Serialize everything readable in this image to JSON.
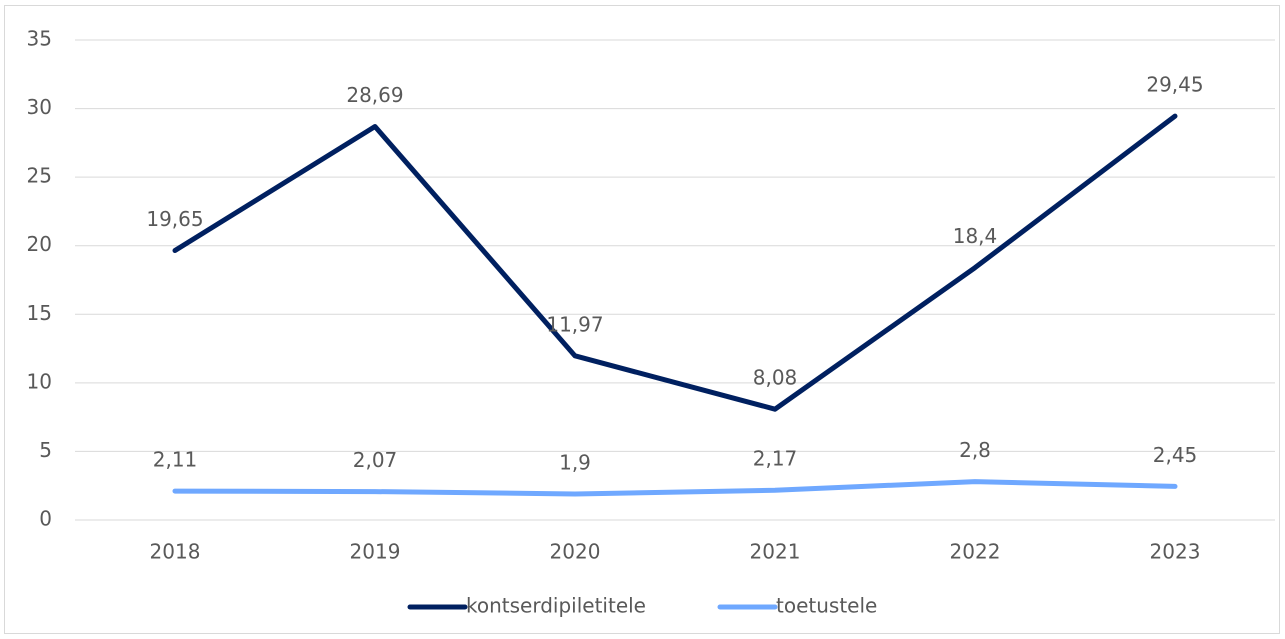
{
  "chart_data": {
    "type": "line",
    "categories": [
      "2018",
      "2019",
      "2020",
      "2021",
      "2022",
      "2023"
    ],
    "series": [
      {
        "name": "kontserdipiletitele",
        "color": "#002060",
        "values": [
          19.65,
          28.69,
          11.97,
          8.08,
          18.4,
          29.45
        ],
        "value_labels": [
          "19,65",
          "28,69",
          "11,97",
          "8,08",
          "18,4",
          "29,45"
        ]
      },
      {
        "name": "toetustele",
        "color": "#6fa8ff",
        "values": [
          2.11,
          2.07,
          1.9,
          2.17,
          2.8,
          2.45
        ],
        "value_labels": [
          "2,11",
          "2,07",
          "1,9",
          "2,17",
          "2,8",
          "2,45"
        ]
      }
    ],
    "ylim": [
      0,
      35
    ],
    "yticks": [
      0,
      5,
      10,
      15,
      20,
      25,
      30,
      35
    ],
    "grid": true,
    "legend": "bottom"
  }
}
